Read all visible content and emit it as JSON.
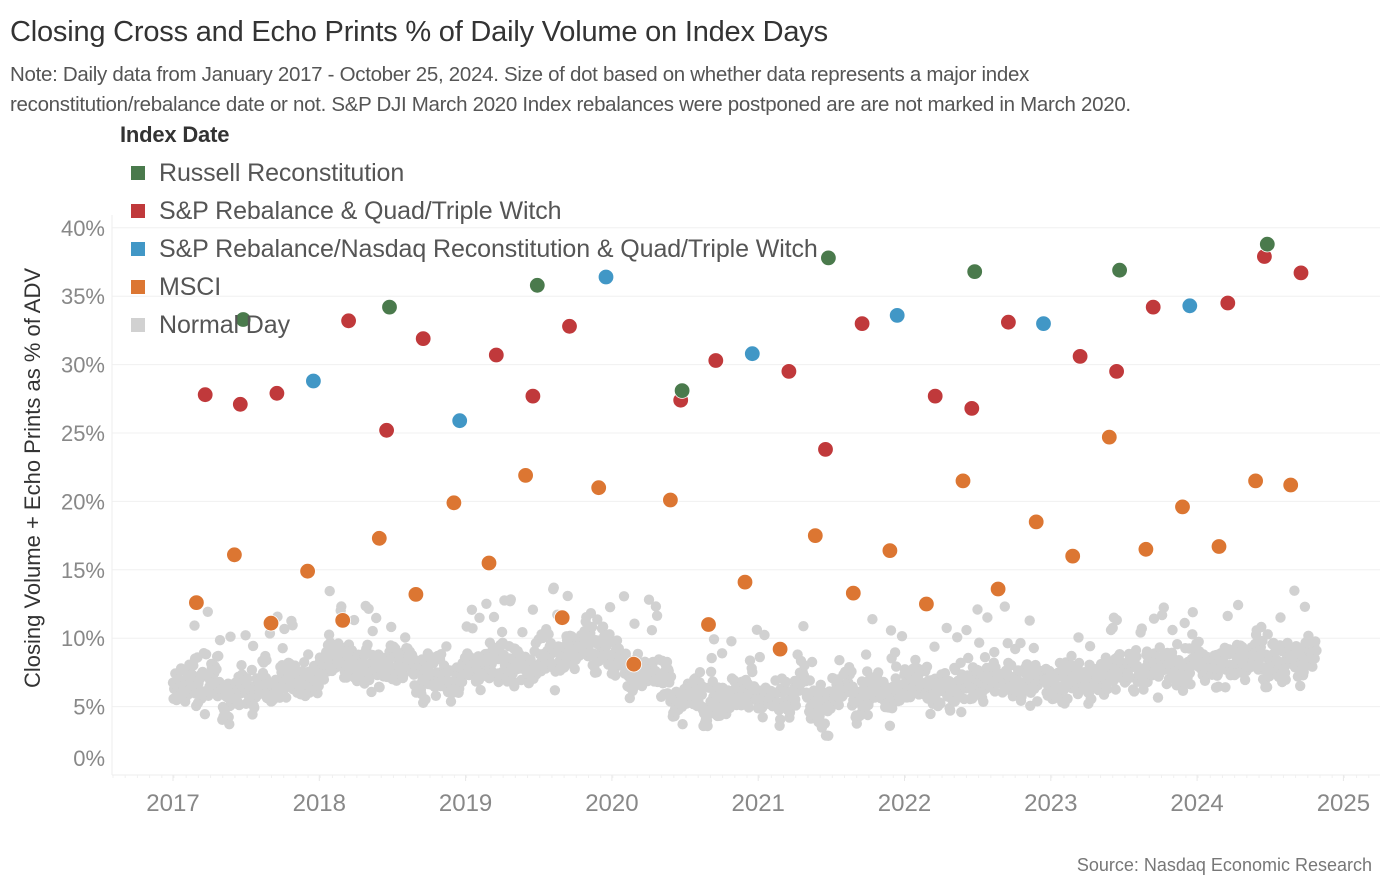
{
  "chart_data": {
    "type": "scatter",
    "title": "Closing Cross and Echo Prints % of Daily Volume on Index Days",
    "subtitle_lines": [
      "Note: Daily data from January 2017 - October 25, 2024. Size of dot based on whether data represents a major index",
      "reconstitution/rebalance date or not. S&P DJI March 2020 Index rebalances were postponed are are not marked in March 2020."
    ],
    "source": "Source: Nasdaq Economic Research",
    "xlabel": "",
    "ylabel": "Closing Volume + Echo Prints as % of ADV",
    "xlim": [
      2016.59,
      2025.24
    ],
    "ylim": [
      0,
      41
    ],
    "x_ticks": [
      2017,
      2018,
      2019,
      2020,
      2021,
      2022,
      2023,
      2024,
      2025
    ],
    "x_tick_labels": [
      "2017",
      "2018",
      "2019",
      "2020",
      "2021",
      "2022",
      "2023",
      "2024",
      "2025"
    ],
    "y_ticks": [
      0,
      5,
      10,
      15,
      20,
      25,
      30,
      35,
      40
    ],
    "y_tick_labels": [
      "0%",
      "5%",
      "10%",
      "15%",
      "20%",
      "25%",
      "30%",
      "35%",
      "40%"
    ],
    "grid": true,
    "legend": {
      "title": "Index Date",
      "placement": "top-left"
    },
    "series": [
      {
        "name": "Russell Reconstitution",
        "color": "#4a7a4c",
        "marker": "large",
        "points": [
          {
            "x": 2017.48,
            "y": 33.3
          },
          {
            "x": 2018.48,
            "y": 34.2
          },
          {
            "x": 2019.49,
            "y": 35.8
          },
          {
            "x": 2020.48,
            "y": 28.1
          },
          {
            "x": 2021.48,
            "y": 37.8
          },
          {
            "x": 2022.48,
            "y": 36.8
          },
          {
            "x": 2023.47,
            "y": 36.9
          },
          {
            "x": 2024.48,
            "y": 38.8
          }
        ]
      },
      {
        "name": "S&P Rebalance & Quad/Triple Witch",
        "color": "#c0393b",
        "marker": "large",
        "points": [
          {
            "x": 2017.22,
            "y": 27.8
          },
          {
            "x": 2017.46,
            "y": 27.1
          },
          {
            "x": 2017.71,
            "y": 27.9
          },
          {
            "x": 2018.2,
            "y": 33.2
          },
          {
            "x": 2018.46,
            "y": 25.2
          },
          {
            "x": 2018.71,
            "y": 31.9
          },
          {
            "x": 2019.21,
            "y": 30.7
          },
          {
            "x": 2019.46,
            "y": 27.7
          },
          {
            "x": 2019.71,
            "y": 32.8
          },
          {
            "x": 2020.47,
            "y": 27.4
          },
          {
            "x": 2020.71,
            "y": 30.3
          },
          {
            "x": 2021.21,
            "y": 29.5
          },
          {
            "x": 2021.46,
            "y": 23.8
          },
          {
            "x": 2021.71,
            "y": 33.0
          },
          {
            "x": 2022.21,
            "y": 27.7
          },
          {
            "x": 2022.46,
            "y": 26.8
          },
          {
            "x": 2022.71,
            "y": 33.1
          },
          {
            "x": 2023.2,
            "y": 30.6
          },
          {
            "x": 2023.45,
            "y": 29.5
          },
          {
            "x": 2023.7,
            "y": 34.2
          },
          {
            "x": 2024.21,
            "y": 34.5
          },
          {
            "x": 2024.46,
            "y": 37.9
          },
          {
            "x": 2024.71,
            "y": 36.7
          }
        ]
      },
      {
        "name": "S&P Rebalance/Nasdaq Reconstitution & Quad/Triple Witch",
        "color": "#4197c6",
        "marker": "large",
        "points": [
          {
            "x": 2017.96,
            "y": 28.8
          },
          {
            "x": 2018.96,
            "y": 25.9
          },
          {
            "x": 2019.96,
            "y": 36.4
          },
          {
            "x": 2020.96,
            "y": 30.8
          },
          {
            "x": 2021.95,
            "y": 33.6
          },
          {
            "x": 2022.95,
            "y": 33.0
          },
          {
            "x": 2023.95,
            "y": 34.3
          }
        ]
      },
      {
        "name": "MSCI",
        "color": "#dc7632",
        "marker": "large",
        "points": [
          {
            "x": 2017.16,
            "y": 12.6
          },
          {
            "x": 2017.42,
            "y": 16.1
          },
          {
            "x": 2017.67,
            "y": 11.1
          },
          {
            "x": 2017.92,
            "y": 14.9
          },
          {
            "x": 2018.16,
            "y": 11.3
          },
          {
            "x": 2018.41,
            "y": 17.3
          },
          {
            "x": 2018.66,
            "y": 13.2
          },
          {
            "x": 2018.92,
            "y": 19.9
          },
          {
            "x": 2019.16,
            "y": 15.5
          },
          {
            "x": 2019.41,
            "y": 21.9
          },
          {
            "x": 2019.66,
            "y": 11.5
          },
          {
            "x": 2019.91,
            "y": 21.0
          },
          {
            "x": 2020.15,
            "y": 8.1
          },
          {
            "x": 2020.4,
            "y": 20.1
          },
          {
            "x": 2020.66,
            "y": 11.0
          },
          {
            "x": 2020.91,
            "y": 14.1
          },
          {
            "x": 2021.15,
            "y": 9.2
          },
          {
            "x": 2021.39,
            "y": 17.5
          },
          {
            "x": 2021.65,
            "y": 13.3
          },
          {
            "x": 2021.9,
            "y": 16.4
          },
          {
            "x": 2022.15,
            "y": 12.5
          },
          {
            "x": 2022.4,
            "y": 21.5
          },
          {
            "x": 2022.64,
            "y": 13.6
          },
          {
            "x": 2022.9,
            "y": 18.5
          },
          {
            "x": 2023.15,
            "y": 16.0
          },
          {
            "x": 2023.4,
            "y": 24.7
          },
          {
            "x": 2023.65,
            "y": 16.5
          },
          {
            "x": 2023.9,
            "y": 19.6
          },
          {
            "x": 2024.15,
            "y": 16.7
          },
          {
            "x": 2024.4,
            "y": 21.5
          },
          {
            "x": 2024.64,
            "y": 21.2
          }
        ]
      },
      {
        "name": "Normal Day",
        "color": "#d1d1d1",
        "marker": "small",
        "note_trend": "dense daily cloud approximated by trend center (%) and spread",
        "trend": [
          {
            "x": 2017.0,
            "y": 6.0
          },
          {
            "x": 2017.5,
            "y": 6.6
          },
          {
            "x": 2018.0,
            "y": 7.7
          },
          {
            "x": 2018.5,
            "y": 8.0
          },
          {
            "x": 2019.0,
            "y": 8.1
          },
          {
            "x": 2019.5,
            "y": 8.6
          },
          {
            "x": 2019.95,
            "y": 9.8
          },
          {
            "x": 2020.15,
            "y": 7.3
          },
          {
            "x": 2020.5,
            "y": 6.0
          },
          {
            "x": 2021.0,
            "y": 5.3
          },
          {
            "x": 2021.3,
            "y": 6.3
          },
          {
            "x": 2021.8,
            "y": 5.9
          },
          {
            "x": 2022.0,
            "y": 6.6
          },
          {
            "x": 2022.5,
            "y": 6.7
          },
          {
            "x": 2023.0,
            "y": 6.8
          },
          {
            "x": 2023.5,
            "y": 7.6
          },
          {
            "x": 2024.0,
            "y": 8.1
          },
          {
            "x": 2024.5,
            "y": 8.6
          },
          {
            "x": 2024.82,
            "y": 8.5
          }
        ],
        "spread": 1.3,
        "x_range": [
          2017.0,
          2024.82
        ]
      }
    ]
  }
}
